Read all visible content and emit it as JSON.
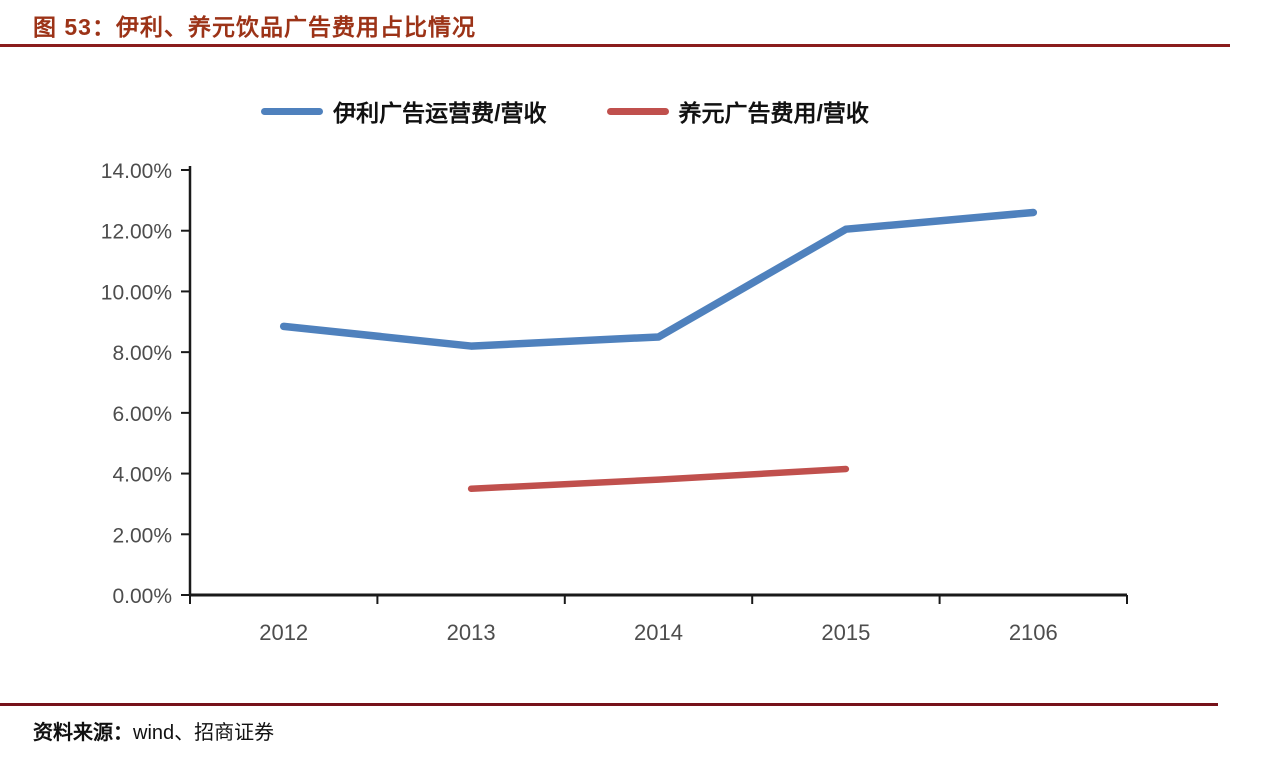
{
  "header": {
    "title": "图 53：伊利、养元饮品广告费用占比情况"
  },
  "footer": {
    "source_label": "资料来源：",
    "source_text": "wind、招商证券"
  },
  "colors": {
    "title_text": "#9C3317",
    "title_rule": "#8A1C1C",
    "footer_rule": "#76121A",
    "axis_line": "#1a1a1a",
    "tick_label": "#4d4d4d",
    "series_blue": "#4F81BD",
    "series_red": "#C0504D"
  },
  "chart_data": {
    "type": "line",
    "categories": [
      "2012",
      "2013",
      "2014",
      "2015",
      "2106"
    ],
    "series": [
      {
        "name": "伊利广告运营费/营收",
        "color": "#4F81BD",
        "stroke_width": 7.5,
        "values": [
          8.85,
          8.2,
          8.5,
          12.05,
          12.6
        ]
      },
      {
        "name": "养元广告费用/营收",
        "color": "#C0504D",
        "stroke_width": 6.5,
        "values": [
          null,
          3.5,
          3.8,
          4.15,
          null
        ]
      }
    ],
    "ylim": [
      0,
      14
    ],
    "y_tick_step": 2,
    "y_tick_labels": [
      "0.00%",
      "2.00%",
      "4.00%",
      "6.00%",
      "8.00%",
      "10.00%",
      "12.00%",
      "14.00%"
    ],
    "grid": false,
    "legend_position": "top",
    "xlabel": "",
    "ylabel": ""
  }
}
